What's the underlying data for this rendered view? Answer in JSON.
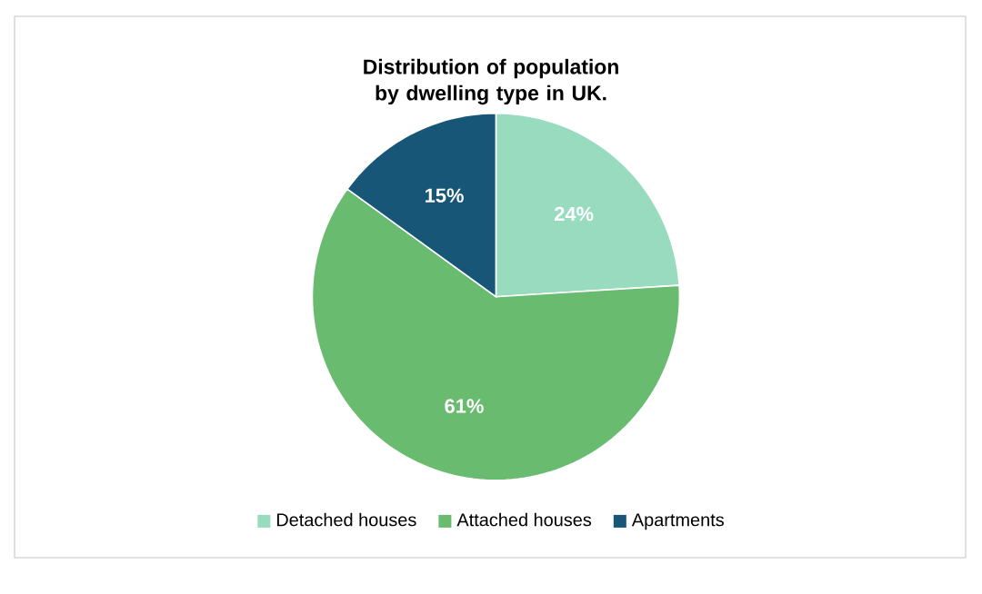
{
  "chart_data": {
    "type": "pie",
    "title": "Distribution of population by dwelling type in UK.",
    "categories": [
      "Detached houses",
      "Attached houses",
      "Apartments"
    ],
    "values": [
      24,
      61,
      15
    ],
    "colors": [
      "#98dbbf",
      "#68bb6f",
      "#175677"
    ],
    "value_labels": [
      "24%",
      "61%",
      "15%"
    ],
    "legend": "bottom"
  }
}
